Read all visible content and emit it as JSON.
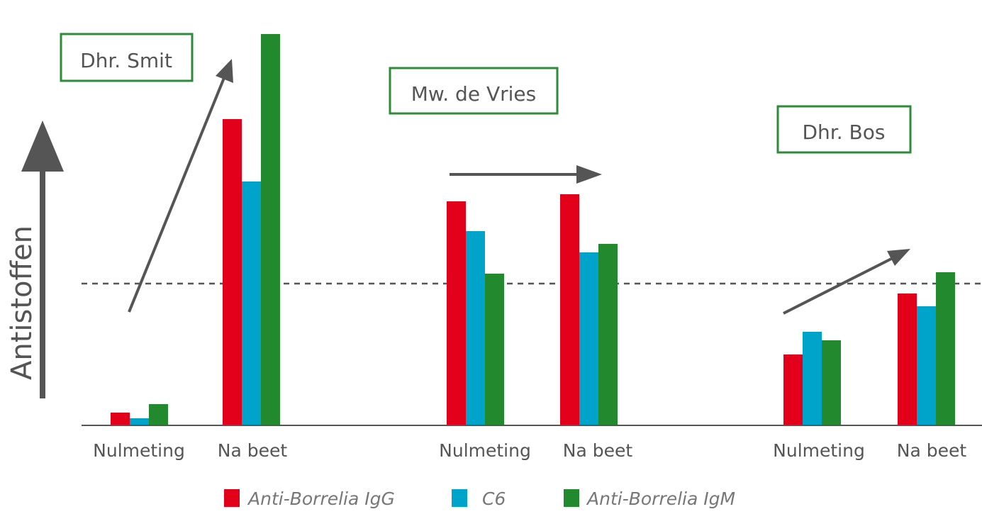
{
  "chart_data": {
    "type": "bar",
    "title": "",
    "ylabel": "Antistoffen",
    "xlabel": "",
    "ylim": [
      0,
      2.8
    ],
    "y_units": "relative antibody level (threshold = 1)",
    "threshold": 1,
    "grid": false,
    "legend_placement": "bottom",
    "groups": [
      {
        "patient": "Dhr. Smit",
        "categories": [
          "Nulmeting",
          "Na beet"
        ]
      },
      {
        "patient": "Mw. de Vries",
        "categories": [
          "Nulmeting",
          "Na beet"
        ]
      },
      {
        "patient": "Dhr. Bos",
        "categories": [
          "Nulmeting",
          "Na beet"
        ]
      }
    ],
    "categories": [
      "Nulmeting",
      "Na beet",
      "Nulmeting",
      "Na beet",
      "Nulmeting",
      "Na beet"
    ],
    "series": [
      {
        "name": "Anti-Borrelia IgG",
        "color": "#e2001a",
        "values": [
          0.09,
          2.16,
          1.58,
          1.63,
          0.5,
          0.93
        ]
      },
      {
        "name": "C6",
        "color": "#00a3c9",
        "values": [
          0.05,
          1.72,
          1.37,
          1.22,
          0.66,
          0.84
        ]
      },
      {
        "name": "Anti-Borrelia IgM",
        "color": "#23892e",
        "values": [
          0.15,
          2.76,
          1.07,
          1.28,
          0.6,
          1.08
        ]
      }
    ]
  },
  "colors": {
    "box": "#2e8b3a",
    "arrow": "#555555",
    "axis": "#555555"
  }
}
